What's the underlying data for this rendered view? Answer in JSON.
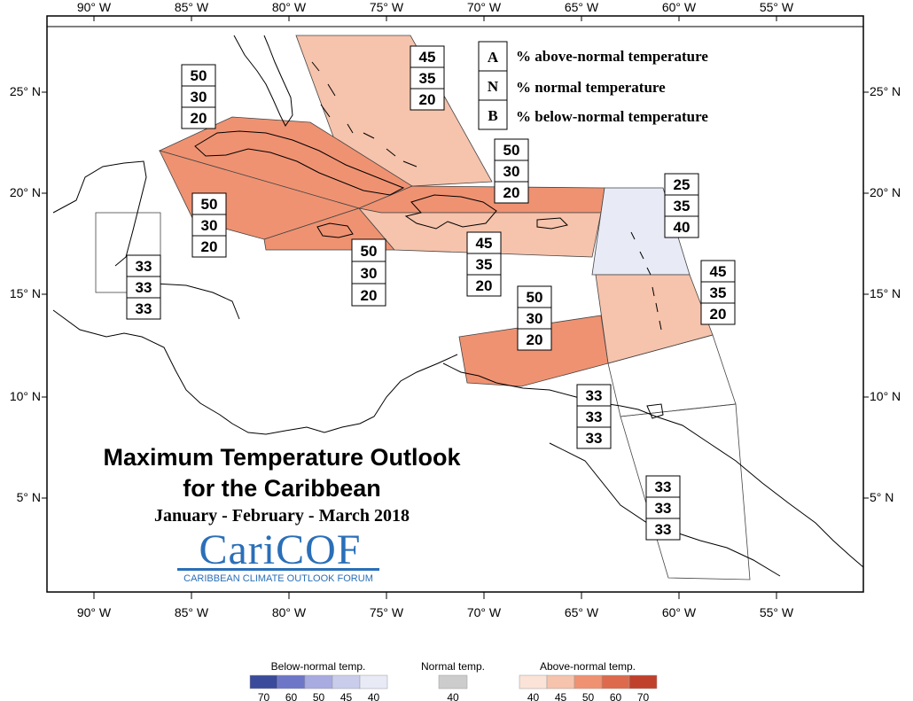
{
  "axes": {
    "lon_labels": [
      "90° W",
      "85° W",
      "80° W",
      "75° W",
      "70° W",
      "65° W",
      "60° W",
      "55° W"
    ],
    "lat_labels": [
      "25° N",
      "20° N",
      "15° N",
      "10° N",
      "5° N"
    ]
  },
  "key": [
    {
      "letter": "A",
      "label": "% above-normal temperature"
    },
    {
      "letter": "N",
      "label": "% normal temperature"
    },
    {
      "letter": "B",
      "label": "% below-normal temperature"
    }
  ],
  "title": {
    "line1": "Maximum Temperature Outlook",
    "line2": "for the Caribbean",
    "period": "January - February - March 2018"
  },
  "logo": {
    "name": "CariCOF",
    "subtitle": "CARIBBEAN CLIMATE OUTLOOK FORUM"
  },
  "colors": {
    "above_40": "#fbe3d8",
    "above_45": "#f6c3ac",
    "above_50": "#ef9272",
    "above_60": "#dd6a4c",
    "above_70": "#c0412b",
    "normal_40": "#cccccc",
    "below_40": "#e8eaf6",
    "below_45": "#c9cdeb",
    "below_50": "#a7abe0",
    "below_60": "#6d76c7",
    "below_70": "#3a4b9b"
  },
  "regions": [
    {
      "id": "bahamas",
      "class": "above_45",
      "A": "45",
      "N": "35",
      "B": "20"
    },
    {
      "id": "cuba",
      "class": "above_50",
      "A": "50",
      "N": "30",
      "B": "20"
    },
    {
      "id": "cayman-jamaica",
      "class": "above_50",
      "A": "50",
      "N": "30",
      "B": "20"
    },
    {
      "id": "jamaica-south",
      "class": "above_50",
      "A": "50",
      "N": "30",
      "B": "20"
    },
    {
      "id": "hispaniola-north",
      "class": "above_50",
      "A": "50",
      "N": "30",
      "B": "20"
    },
    {
      "id": "hispaniola-pr",
      "class": "above_45",
      "A": "45",
      "N": "35",
      "B": "20"
    },
    {
      "id": "northern-lesser-antilles",
      "class": "below_40",
      "A": "25",
      "N": "35",
      "B": "40"
    },
    {
      "id": "windward-islands",
      "class": "above_45",
      "A": "45",
      "N": "35",
      "B": "20"
    },
    {
      "id": "abc-islands",
      "class": "above_50",
      "A": "50",
      "N": "30",
      "B": "20"
    },
    {
      "id": "belize",
      "class": "normal",
      "A": "33",
      "N": "33",
      "B": "33"
    },
    {
      "id": "trinidad",
      "class": "normal",
      "A": "33",
      "N": "33",
      "B": "33"
    },
    {
      "id": "guianas",
      "class": "normal",
      "A": "33",
      "N": "33",
      "B": "33"
    }
  ],
  "legend": {
    "below": {
      "title": "Below-normal temp.",
      "ticks": [
        "70",
        "60",
        "50",
        "45",
        "40"
      ]
    },
    "normal": {
      "title": "Normal temp.",
      "ticks": [
        "40"
      ]
    },
    "above": {
      "title": "Above-normal temp.",
      "ticks": [
        "40",
        "45",
        "50",
        "60",
        "70"
      ]
    }
  }
}
